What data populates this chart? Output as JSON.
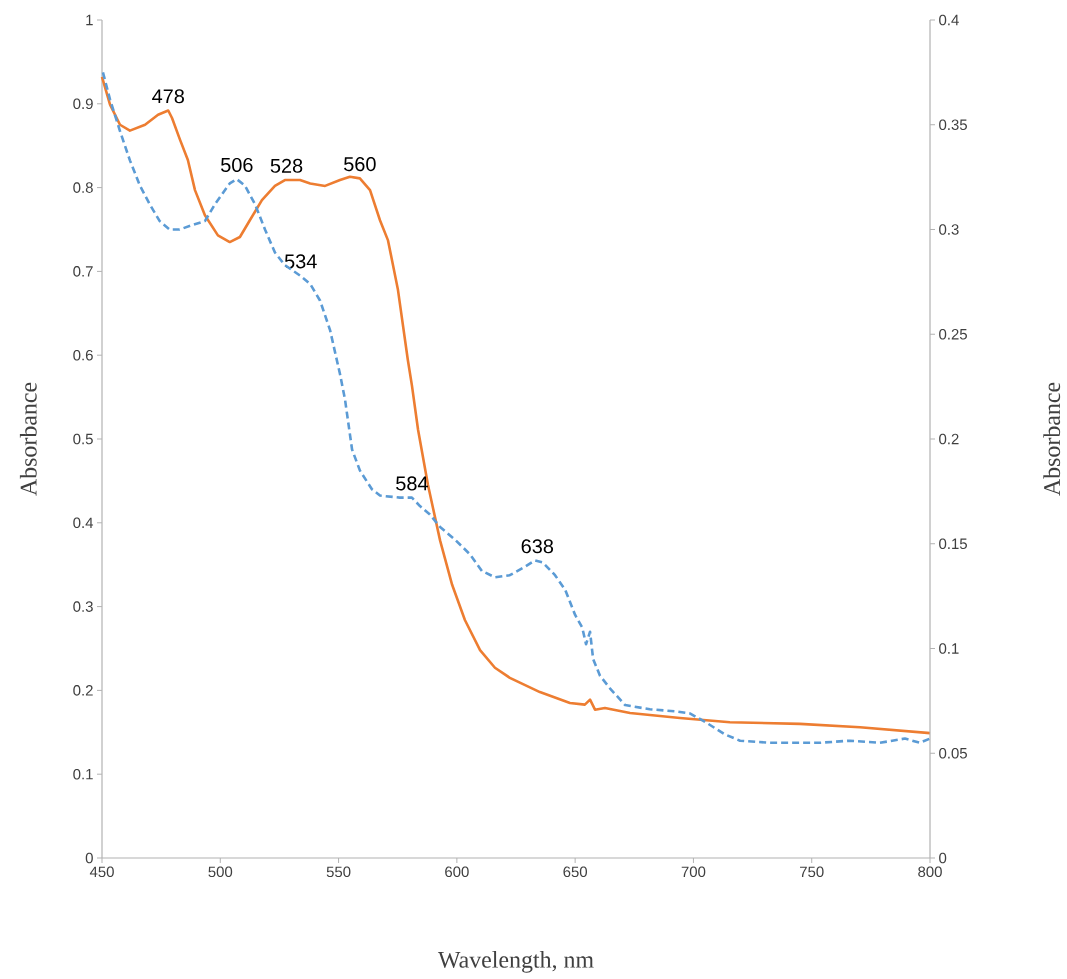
{
  "chart_data": {
    "type": "line",
    "xlabel": "Wavelength, nm",
    "ylabel": "Absorbance",
    "y2label": "Absorbance",
    "xlim": [
      450,
      800
    ],
    "xticks": [
      450,
      500,
      550,
      600,
      650,
      700,
      750,
      800
    ],
    "ylim": [
      0,
      1
    ],
    "yticks": [
      0,
      0.1,
      0.2,
      0.3,
      0.4,
      0.5,
      0.6,
      0.7,
      0.8,
      0.9,
      1
    ],
    "y2lim": [
      0,
      0.4
    ],
    "y2ticks": [
      0,
      0.05,
      0.1,
      0.15,
      0.2,
      0.25,
      0.3,
      0.35,
      0.4
    ],
    "annotations": [
      {
        "text": "478",
        "x": 478,
        "y": 0.892
      },
      {
        "text": "506",
        "x": 507,
        "y": 0.81
      },
      {
        "text": "528",
        "x": 528,
        "y": 0.809
      },
      {
        "text": "560",
        "x": 559,
        "y": 0.811
      },
      {
        "text": "534",
        "x": 534,
        "y": 0.695
      },
      {
        "text": "584",
        "x": 581,
        "y": 0.43
      },
      {
        "text": "638",
        "x": 634,
        "y": 0.355
      }
    ],
    "series": [
      {
        "color": "#ed7d31",
        "line_style": "solid",
        "axis": "y",
        "x": [
          450,
          453.4,
          457.6,
          461.8,
          468.2,
          473.7,
          478,
          479.6,
          483,
          486.3,
          489.3,
          493.5,
          499,
          504,
          508.3,
          512.5,
          517.6,
          523.1,
          527.3,
          533.7,
          538,
          544.3,
          550.6,
          554.8,
          559,
          563.3,
          567.5,
          570.9,
          575.1,
          579.3,
          581,
          583.6,
          587.8,
          592.9,
          598,
          603.4,
          609.8,
          616.1,
          622.4,
          635.1,
          647.8,
          654.1,
          656.3,
          658.4,
          662.6,
          673.2,
          694.3,
          715.4,
          745,
          770.4,
          800
        ],
        "values": [
          0.932,
          0.899,
          0.875,
          0.868,
          0.875,
          0.887,
          0.892,
          0.883,
          0.857,
          0.833,
          0.797,
          0.767,
          0.743,
          0.735,
          0.741,
          0.761,
          0.785,
          0.802,
          0.809,
          0.809,
          0.805,
          0.802,
          0.809,
          0.813,
          0.811,
          0.797,
          0.761,
          0.737,
          0.678,
          0.594,
          0.564,
          0.511,
          0.445,
          0.379,
          0.326,
          0.284,
          0.248,
          0.227,
          0.215,
          0.198,
          0.185,
          0.183,
          0.189,
          0.177,
          0.179,
          0.173,
          0.167,
          0.162,
          0.16,
          0.156,
          0.149
        ]
      },
      {
        "color": "#5b9bd5",
        "line_style": "dashed",
        "axis": "y2",
        "x": [
          450.4,
          453.4,
          457.6,
          461.8,
          466,
          470.2,
          474.4,
          478.6,
          482.8,
          487.9,
          493.5,
          497.7,
          504,
          507,
          510.4,
          514.7,
          518.9,
          523.1,
          527.3,
          533.7,
          538,
          542.2,
          546.4,
          550.6,
          552.7,
          555.7,
          559,
          564.1,
          567.5,
          575.9,
          581,
          584.4,
          588.6,
          592.9,
          599.2,
          605.5,
          610.6,
          616.1,
          622.4,
          628.8,
          633,
          636.4,
          641.5,
          645.8,
          650,
          653,
          654.6,
          656.3,
          657.6,
          660.5,
          664.7,
          671.1,
          681.6,
          692.2,
          698.5,
          704.9,
          713.3,
          719.7,
          732.3,
          753.5,
          766.1,
          778.8,
          789.4,
          795.7,
          800
        ],
        "values": [
          0.375,
          0.362,
          0.347,
          0.333,
          0.321,
          0.312,
          0.304,
          0.3,
          0.3,
          0.302,
          0.304,
          0.312,
          0.322,
          0.324,
          0.321,
          0.312,
          0.3,
          0.289,
          0.283,
          0.278,
          0.274,
          0.266,
          0.252,
          0.231,
          0.219,
          0.195,
          0.185,
          0.176,
          0.173,
          0.172,
          0.172,
          0.168,
          0.164,
          0.158,
          0.152,
          0.145,
          0.137,
          0.134,
          0.135,
          0.139,
          0.142,
          0.141,
          0.135,
          0.128,
          0.116,
          0.11,
          0.102,
          0.108,
          0.095,
          0.087,
          0.081,
          0.073,
          0.071,
          0.07,
          0.069,
          0.065,
          0.059,
          0.056,
          0.055,
          0.055,
          0.056,
          0.055,
          0.057,
          0.055,
          0.057
        ]
      }
    ]
  }
}
